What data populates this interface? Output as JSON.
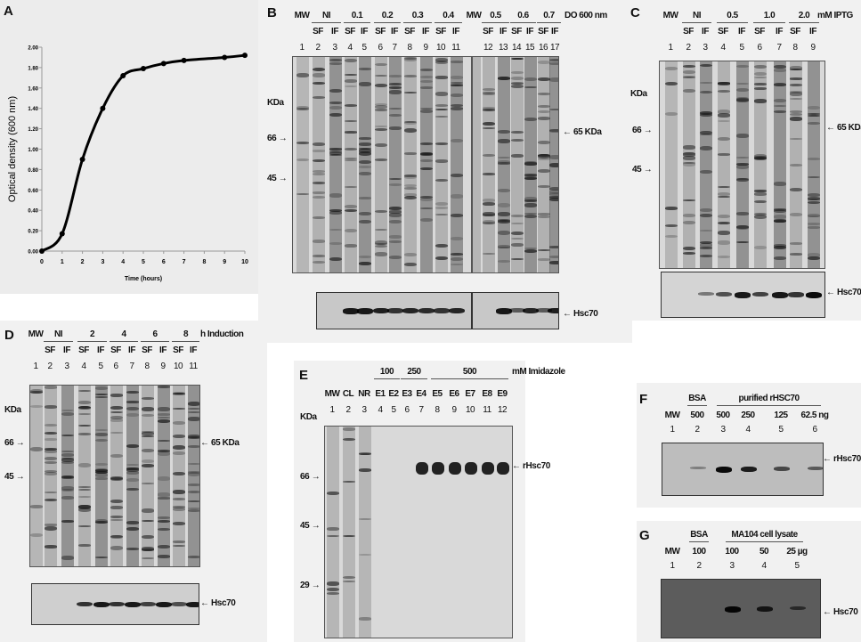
{
  "panels": {
    "A": {
      "letter": "A"
    },
    "B": {
      "letter": "B",
      "groups": [
        {
          "label": "MW",
          "from": 1,
          "to": 1,
          "line": false
        },
        {
          "label": "NI",
          "from": 2,
          "to": 3,
          "line": true
        },
        {
          "label": "0.1",
          "from": 4,
          "to": 5,
          "line": true
        },
        {
          "label": "0.2",
          "from": 6,
          "to": 7,
          "line": true
        },
        {
          "label": "0.3",
          "from": 8,
          "to": 9,
          "line": true
        },
        {
          "label": "0.4",
          "from": 10,
          "to": 11,
          "line": true
        },
        {
          "label": "MW",
          "from": 0,
          "to": 0,
          "line": false
        },
        {
          "label": "0.5",
          "from": 12,
          "to": 13,
          "line": true
        },
        {
          "label": "0.6",
          "from": 14,
          "to": 15,
          "line": true
        },
        {
          "label": "0.7",
          "from": 16,
          "to": 17,
          "line": true
        }
      ],
      "unit": "DO 600 nm",
      "fractions": [
        "",
        "SF",
        "IF",
        "SF",
        "IF",
        "SF",
        "IF",
        "SF",
        "IF",
        "SF",
        "IF",
        "SF",
        "IF",
        "SF",
        "IF",
        "SF",
        "IF"
      ],
      "lanes": [
        "1",
        "2",
        "3",
        "4",
        "5",
        "6",
        "7",
        "8",
        "9",
        "10",
        "11",
        "12",
        "13",
        "14",
        "15",
        "16",
        "17"
      ],
      "kda": "KDa",
      "markers": [
        "66",
        "45"
      ],
      "target_label": "65 KDa",
      "blot_label": "Hsc70",
      "blot_intensity": [
        0,
        0,
        0,
        0.9,
        0.9,
        0.85,
        0.7,
        0.8,
        0.75,
        0.7,
        0.8,
        0,
        0.9,
        0.4,
        0.8,
        0.4,
        0.85
      ]
    },
    "C": {
      "letter": "C",
      "groups": [
        {
          "label": "MW",
          "from": 1,
          "to": 1,
          "line": false
        },
        {
          "label": "NI",
          "from": 2,
          "to": 3,
          "line": true
        },
        {
          "label": "0.5",
          "from": 4,
          "to": 5,
          "line": true
        },
        {
          "label": "1.0",
          "from": 6,
          "to": 7,
          "line": true
        },
        {
          "label": "2.0",
          "from": 8,
          "to": 9,
          "line": true
        }
      ],
      "unit": "mM IPTG",
      "fractions": [
        "",
        "SF",
        "IF",
        "SF",
        "IF",
        "SF",
        "IF",
        "SF",
        "IF"
      ],
      "lanes": [
        "1",
        "2",
        "3",
        "4",
        "5",
        "6",
        "7",
        "8",
        "9"
      ],
      "kda": "KDa",
      "markers": [
        "66",
        "45"
      ],
      "target_label": "65 KDa",
      "blot_label": "Hsc70",
      "blot_intensity": [
        0,
        0,
        0.2,
        0.5,
        0.9,
        0.6,
        0.9,
        0.7,
        1
      ]
    },
    "D": {
      "letter": "D",
      "groups": [
        {
          "label": "MW",
          "from": 1,
          "to": 1,
          "line": false
        },
        {
          "label": "NI",
          "from": 2,
          "to": 3,
          "line": true
        },
        {
          "label": "2",
          "from": 4,
          "to": 5,
          "line": true
        },
        {
          "label": "4",
          "from": 6,
          "to": 7,
          "line": true
        },
        {
          "label": "6",
          "from": 8,
          "to": 9,
          "line": true
        },
        {
          "label": "8",
          "from": 10,
          "to": 11,
          "line": true
        }
      ],
      "unit": "h Induction",
      "fractions": [
        "",
        "SF",
        "IF",
        "SF",
        "IF",
        "SF",
        "IF",
        "SF",
        "IF",
        "SF",
        "IF"
      ],
      "lanes": [
        "1",
        "2",
        "3",
        "4",
        "5",
        "6",
        "7",
        "8",
        "9",
        "10",
        "11"
      ],
      "kda": "KDa",
      "markers": [
        "66",
        "45"
      ],
      "target_label": "65 KDa",
      "blot_label": "Hsc70",
      "blot_intensity": [
        0,
        0,
        0,
        0.7,
        0.9,
        0.7,
        0.9,
        0.6,
        0.9,
        0.5,
        0.9
      ]
    },
    "E": {
      "letter": "E",
      "groups": [
        {
          "label": "100",
          "from": 4,
          "to": 5,
          "line": true
        },
        {
          "label": "250",
          "from": 6,
          "to": 7,
          "line": true
        },
        {
          "label": "500",
          "from": 8,
          "to": 12,
          "line": true
        }
      ],
      "unit": "mM Imidazole",
      "fractions": [
        "MW",
        "CL",
        "NR",
        "E1",
        "E2",
        "E3",
        "E4",
        "E5",
        "E6",
        "E7",
        "E8",
        "E9"
      ],
      "lanes": [
        "1",
        "2",
        "3",
        "4",
        "5",
        "6",
        "7",
        "8",
        "9",
        "10",
        "11",
        "12"
      ],
      "kda": "KDa",
      "markers": [
        "66",
        "45",
        "29"
      ],
      "target_label": "rHsc70"
    },
    "F": {
      "letter": "F",
      "groups": [
        {
          "label": "BSA",
          "from": 2,
          "to": 2,
          "line": true
        },
        {
          "label": "purified rHSC70",
          "from": 3,
          "to": 6,
          "line": true
        }
      ],
      "amounts": [
        "MW",
        "500",
        "500",
        "250",
        "125",
        "62.5 ng"
      ],
      "lanes": [
        "1",
        "2",
        "3",
        "4",
        "5",
        "6"
      ],
      "blot_label": "rHsc70",
      "blot_intensity": [
        0,
        0.05,
        1,
        0.85,
        0.5,
        0.35
      ]
    },
    "G": {
      "letter": "G",
      "groups": [
        {
          "label": "BSA",
          "from": 2,
          "to": 2,
          "line": true
        },
        {
          "label": "MA104 cell lysate",
          "from": 3,
          "to": 5,
          "line": true
        }
      ],
      "amounts": [
        "MW",
        "100",
        "100",
        "50",
        "25 µg"
      ],
      "lanes": [
        "1",
        "2",
        "3",
        "4",
        "5"
      ],
      "blot_label": "Hsc70",
      "blot_intensity": [
        0,
        0,
        1,
        0.75,
        0.4
      ]
    }
  },
  "chart_data": {
    "type": "line",
    "title": "",
    "xlabel": "Time (hours)",
    "ylabel": "Optical density (600 nm)",
    "xlim": [
      0,
      10
    ],
    "ylim": [
      0,
      2
    ],
    "x_ticks": [
      "0",
      "1",
      "2",
      "3",
      "4",
      "5",
      "6",
      "7",
      "8",
      "9",
      "10"
    ],
    "y_ticks": [
      "0.00",
      "0.20",
      "0.40",
      "0.60",
      "0.80",
      "1.00",
      "1.20",
      "1.40",
      "1.60",
      "1.80",
      "2.00"
    ],
    "grid": false,
    "x": [
      0,
      1,
      2,
      3,
      4,
      5,
      6,
      7,
      9,
      10
    ],
    "y": [
      0.0,
      0.17,
      0.9,
      1.4,
      1.72,
      1.79,
      1.84,
      1.87,
      1.9,
      1.92
    ],
    "line_color": "#000000"
  }
}
